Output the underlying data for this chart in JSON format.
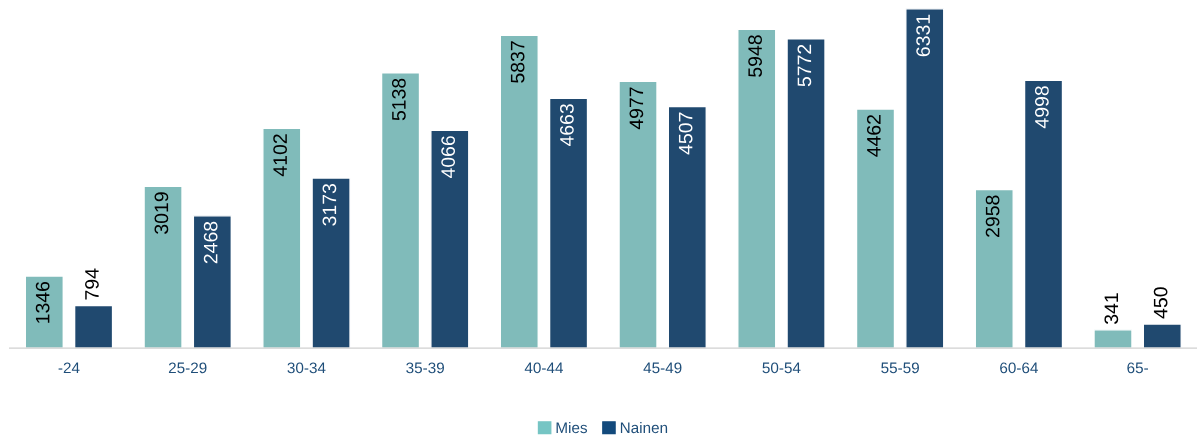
{
  "chart_data": {
    "type": "bar",
    "categories": [
      "-24",
      "25-29",
      "30-34",
      "35-39",
      "40-44",
      "45-49",
      "50-54",
      "55-59",
      "60-64",
      "65-"
    ],
    "series": [
      {
        "name": "Mies",
        "color": "#76c5c4",
        "values": [
          1346,
          3019,
          4102,
          5138,
          5837,
          4977,
          5948,
          4462,
          2958,
          341
        ]
      },
      {
        "name": "Nainen",
        "color": "#134a7c",
        "values": [
          794,
          2468,
          3173,
          4066,
          4663,
          4507,
          5772,
          6331,
          4998,
          450
        ]
      }
    ],
    "data_labels": true,
    "grid": false,
    "legend": "bottom"
  }
}
